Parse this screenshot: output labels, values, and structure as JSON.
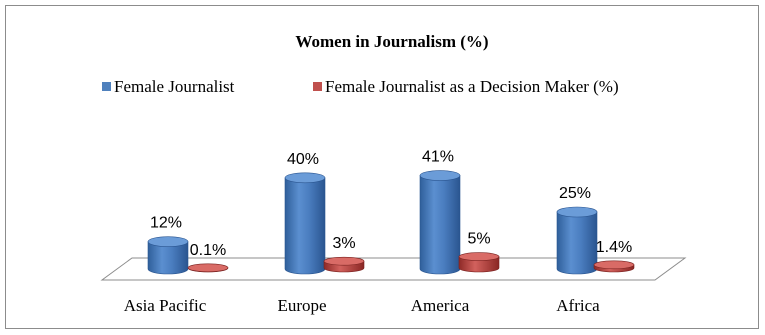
{
  "chart_data": {
    "type": "bar",
    "title": "Women in Journalism (%)",
    "categories": [
      "Asia Pacific",
      "Europe",
      "America",
      "Africa"
    ],
    "series": [
      {
        "name": "Female Journalist",
        "values": [
          12,
          40,
          41,
          25
        ],
        "labels": [
          "12%",
          "40%",
          "41%",
          "25%"
        ],
        "color": "#4f81bd"
      },
      {
        "name": "Female Journalist as a Decision Maker (%)",
        "values": [
          0.1,
          3,
          5,
          1.4
        ],
        "labels": [
          "0.1%",
          "3%",
          "5%",
          "1.4%"
        ],
        "color": "#c0504d"
      }
    ],
    "ylim": [
      0,
      50
    ],
    "grid": false,
    "legend_position": "top",
    "style": "3d-cylinder"
  }
}
